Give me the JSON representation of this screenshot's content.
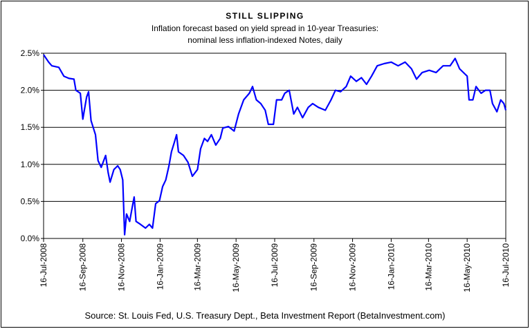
{
  "chart_data": {
    "type": "line",
    "title": "STILL SLIPPING",
    "subtitle": [
      "Inflation forecast based on yield spread in 10-year Treasuries:",
      "nominal less inflation-indexed Notes, daily"
    ],
    "source": "Source: St. Louis Fed, U.S. Treasury Dept., Beta Investment Report (BetaInvestment.com)",
    "color": "#0000ff",
    "grid": true,
    "x": [
      "2008-07-16",
      "2008-07-24",
      "2008-07-29",
      "2008-08-09",
      "2008-08-17",
      "2008-08-25",
      "2008-09-02",
      "2008-09-05",
      "2008-09-12",
      "2008-09-16",
      "2008-09-22",
      "2008-09-25",
      "2008-09-29",
      "2008-10-06",
      "2008-10-10",
      "2008-10-15",
      "2008-10-19",
      "2008-10-22",
      "2008-10-26",
      "2008-10-29",
      "2008-11-04",
      "2008-11-10",
      "2008-11-14",
      "2008-11-18",
      "2008-11-21",
      "2008-11-24",
      "2008-11-29",
      "2008-12-03",
      "2008-12-06",
      "2008-12-09",
      "2008-12-16",
      "2008-12-24",
      "2008-12-30",
      "2009-01-04",
      "2009-01-09",
      "2009-01-15",
      "2009-01-20",
      "2009-01-25",
      "2009-01-30",
      "2009-02-03",
      "2009-02-08",
      "2009-02-11",
      "2009-02-14",
      "2009-02-22",
      "2009-03-01",
      "2009-03-08",
      "2009-03-16",
      "2009-03-21",
      "2009-03-27",
      "2009-04-01",
      "2009-04-07",
      "2009-04-14",
      "2009-04-21",
      "2009-04-25",
      "2009-05-04",
      "2009-05-13",
      "2009-05-20",
      "2009-05-28",
      "2009-06-06",
      "2009-06-11",
      "2009-06-17",
      "2009-06-24",
      "2009-07-01",
      "2009-07-06",
      "2009-07-14",
      "2009-07-19",
      "2009-07-27",
      "2009-08-01",
      "2009-08-08",
      "2009-08-15",
      "2009-08-21",
      "2009-08-29",
      "2009-09-07",
      "2009-09-14",
      "2009-09-23",
      "2009-10-04",
      "2009-10-13",
      "2009-10-20",
      "2009-10-28",
      "2009-11-06",
      "2009-11-13",
      "2009-11-22",
      "2009-11-30",
      "2009-12-08",
      "2009-12-16",
      "2009-12-25",
      "2010-01-05",
      "2010-01-16",
      "2010-01-27",
      "2010-02-07",
      "2010-02-17",
      "2010-02-25",
      "2010-03-06",
      "2010-03-17",
      "2010-03-28",
      "2010-04-08",
      "2010-04-19",
      "2010-04-27",
      "2010-05-04",
      "2010-05-10",
      "2010-05-16",
      "2010-05-19",
      "2010-05-25",
      "2010-05-30",
      "2010-06-07",
      "2010-06-14",
      "2010-06-21",
      "2010-06-25",
      "2010-07-02",
      "2010-07-08",
      "2010-07-13",
      "2010-07-16"
    ],
    "values": [
      2.48,
      2.38,
      2.33,
      2.31,
      2.19,
      2.16,
      2.15,
      2.0,
      1.96,
      1.61,
      1.91,
      1.98,
      1.59,
      1.4,
      1.05,
      0.96,
      1.05,
      1.12,
      0.89,
      0.76,
      0.93,
      0.98,
      0.93,
      0.79,
      0.05,
      0.33,
      0.23,
      0.42,
      0.56,
      0.23,
      0.19,
      0.14,
      0.19,
      0.14,
      0.47,
      0.51,
      0.7,
      0.79,
      0.98,
      1.17,
      1.31,
      1.4,
      1.17,
      1.12,
      1.03,
      0.84,
      0.93,
      1.21,
      1.35,
      1.31,
      1.4,
      1.26,
      1.35,
      1.49,
      1.51,
      1.45,
      1.68,
      1.87,
      1.96,
      2.05,
      1.87,
      1.82,
      1.73,
      1.54,
      1.54,
      1.87,
      1.87,
      1.96,
      2.0,
      1.68,
      1.77,
      1.63,
      1.77,
      1.82,
      1.77,
      1.73,
      1.87,
      2.0,
      1.98,
      2.05,
      2.19,
      2.12,
      2.17,
      2.08,
      2.19,
      2.33,
      2.36,
      2.38,
      2.33,
      2.38,
      2.29,
      2.15,
      2.24,
      2.27,
      2.24,
      2.33,
      2.33,
      2.43,
      2.29,
      2.24,
      2.19,
      1.87,
      1.87,
      2.05,
      1.96,
      2.0,
      2.0,
      1.82,
      1.71,
      1.87,
      1.82,
      1.73
    ],
    "xlim": [
      "2008-07-16",
      "2010-07-16"
    ],
    "xticks": [
      {
        "value": "2008-07-16",
        "label": "16-Jul-2008"
      },
      {
        "value": "2008-09-16",
        "label": "16-Sep-2008"
      },
      {
        "value": "2008-11-16",
        "label": "16-Nov-2008"
      },
      {
        "value": "2009-01-16",
        "label": "16-Jan-2009"
      },
      {
        "value": "2009-03-16",
        "label": "16-Mar-2009"
      },
      {
        "value": "2009-05-16",
        "label": "16-May-2009"
      },
      {
        "value": "2009-07-16",
        "label": "16-Jul-2009"
      },
      {
        "value": "2009-09-16",
        "label": "16-Sep-2009"
      },
      {
        "value": "2009-11-16",
        "label": "16-Nov-2009"
      },
      {
        "value": "2010-01-16",
        "label": "16-Jan-2010"
      },
      {
        "value": "2010-03-16",
        "label": "16-Mar-2010"
      },
      {
        "value": "2010-05-16",
        "label": "16-May-2010"
      },
      {
        "value": "2010-07-16",
        "label": "16-Jul-2010"
      }
    ],
    "ylim": [
      0,
      2.5
    ],
    "yticks": [
      {
        "value": 0,
        "label": "0.0%"
      },
      {
        "value": 0.5,
        "label": "0.5%"
      },
      {
        "value": 1,
        "label": "1.0%"
      },
      {
        "value": 1.5,
        "label": "1.5%"
      },
      {
        "value": 2,
        "label": "2.0%"
      },
      {
        "value": 2.5,
        "label": "2.5%"
      }
    ]
  }
}
